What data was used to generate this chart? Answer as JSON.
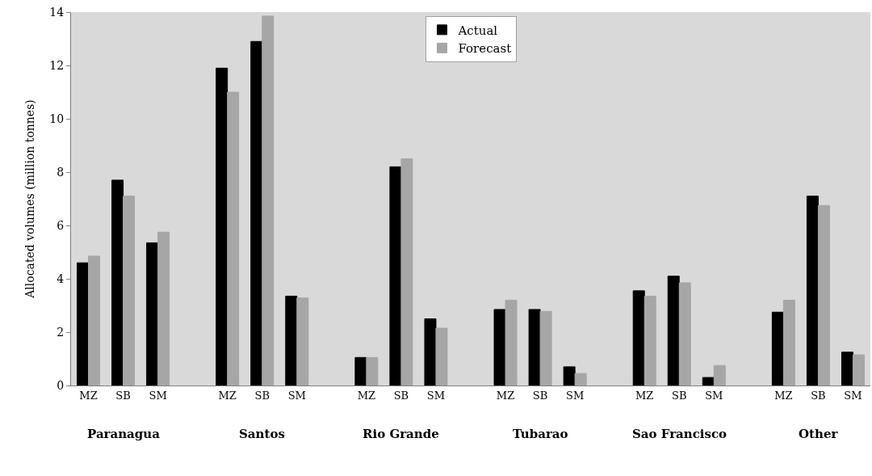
{
  "chart_data": {
    "type": "bar",
    "ylabel": "Allocated volumes (million tonnes)",
    "categories": [
      "MZ",
      "SB",
      "SM",
      null,
      "MZ",
      "SB",
      "SM",
      null,
      "MZ",
      "SB",
      "SM",
      null,
      "MZ",
      "SB",
      "SM",
      null,
      "MZ",
      "SB",
      "SM",
      null,
      "MZ",
      "SB",
      "SM"
    ],
    "series": [
      {
        "name": "Actual",
        "color": "#000000",
        "values": [
          4.6,
          7.7,
          5.35,
          null,
          11.9,
          12.9,
          3.35,
          null,
          1.05,
          8.2,
          2.5,
          null,
          2.85,
          2.85,
          0.7,
          null,
          3.55,
          4.1,
          0.3,
          null,
          2.75,
          7.1,
          1.25
        ]
      },
      {
        "name": "Forecast",
        "color": "#a6a6a6",
        "values": [
          4.85,
          7.1,
          5.75,
          null,
          11.0,
          13.85,
          3.28,
          null,
          1.05,
          8.5,
          2.15,
          null,
          3.2,
          2.78,
          0.45,
          null,
          3.35,
          3.85,
          0.75,
          null,
          3.2,
          6.75,
          1.15
        ]
      }
    ],
    "annotations": [
      "Paranagua",
      "Santos",
      "Rio Grande",
      "Tubarao",
      "Sao Francisco",
      "Other"
    ],
    "ylim": [
      0,
      14
    ],
    "yticks": [
      0,
      2,
      4,
      6,
      8,
      10,
      12,
      14
    ],
    "grid": false,
    "legend": "top"
  }
}
